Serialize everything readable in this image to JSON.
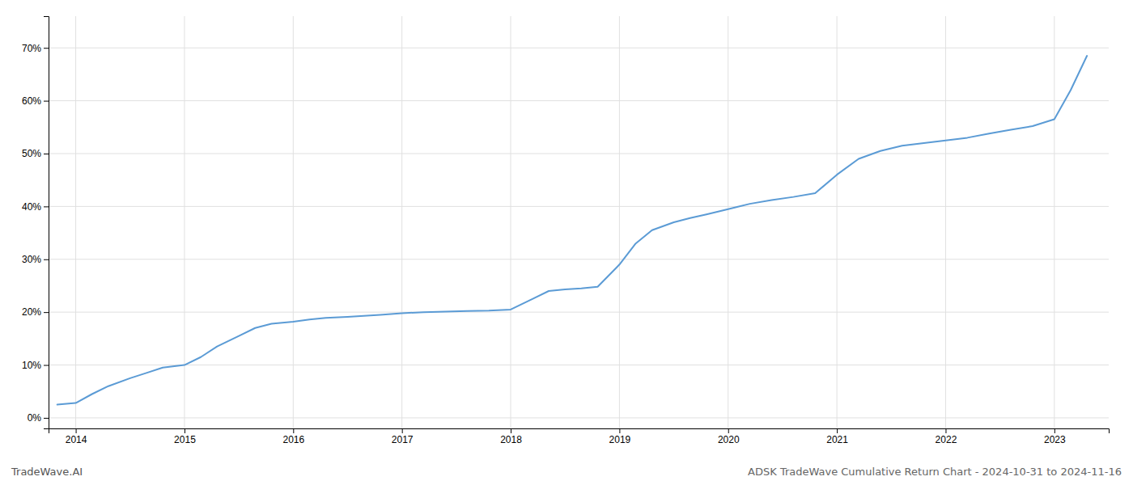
{
  "chart_data": {
    "type": "line",
    "title": "ADSK TradeWave Cumulative Return Chart - 2024-10-31 to 2024-11-16",
    "annotations": [
      "TradeWave.AI"
    ],
    "x": [
      2013.83,
      2014.0,
      2014.15,
      2014.3,
      2014.5,
      2014.65,
      2014.8,
      2015.0,
      2015.15,
      2015.3,
      2015.5,
      2015.65,
      2015.8,
      2016.0,
      2016.15,
      2016.3,
      2016.5,
      2016.65,
      2016.8,
      2017.0,
      2017.2,
      2017.4,
      2017.6,
      2017.8,
      2018.0,
      2018.2,
      2018.35,
      2018.5,
      2018.65,
      2018.8,
      2019.0,
      2019.15,
      2019.3,
      2019.5,
      2019.65,
      2019.8,
      2020.0,
      2020.2,
      2020.4,
      2020.6,
      2020.8,
      2021.0,
      2021.2,
      2021.4,
      2021.6,
      2021.8,
      2022.0,
      2022.2,
      2022.4,
      2022.6,
      2022.8,
      2023.0,
      2023.15,
      2023.3
    ],
    "values": [
      2.5,
      2.8,
      4.5,
      6.0,
      7.5,
      8.5,
      9.5,
      10.0,
      11.5,
      13.5,
      15.5,
      17.0,
      17.8,
      18.2,
      18.6,
      18.9,
      19.1,
      19.3,
      19.5,
      19.8,
      20.0,
      20.1,
      20.2,
      20.3,
      20.5,
      22.5,
      24.0,
      24.3,
      24.5,
      24.8,
      29.0,
      33.0,
      35.5,
      37.0,
      37.8,
      38.5,
      39.5,
      40.5,
      41.2,
      41.8,
      42.5,
      46.0,
      49.0,
      50.5,
      51.5,
      52.0,
      52.5,
      53.0,
      53.8,
      54.5,
      55.2,
      56.5,
      62.0,
      68.5
    ],
    "color": "#5b9bd5",
    "xlim": [
      2013.75,
      2023.5
    ],
    "ylim": [
      -2,
      76
    ],
    "xticks": [
      2014,
      2015,
      2016,
      2017,
      2018,
      2019,
      2020,
      2021,
      2022,
      2023
    ],
    "yticks": [
      {
        "value": 0,
        "label": "0%"
      },
      {
        "value": 10,
        "label": "10%"
      },
      {
        "value": 20,
        "label": "20%"
      },
      {
        "value": 30,
        "label": "30%"
      },
      {
        "value": 40,
        "label": "40%"
      },
      {
        "value": 50,
        "label": "50%"
      },
      {
        "value": 60,
        "label": "60%"
      },
      {
        "value": 70,
        "label": "70%"
      }
    ],
    "grid": true
  }
}
